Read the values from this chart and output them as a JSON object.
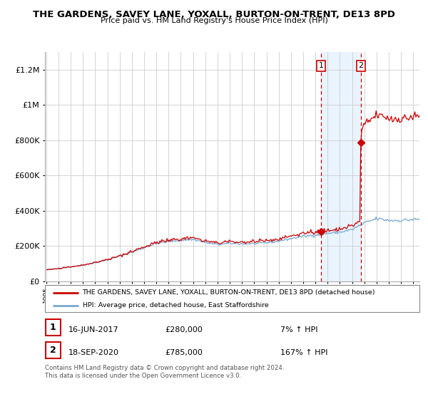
{
  "title1": "THE GARDENS, SAVEY LANE, YOXALL, BURTON-ON-TRENT, DE13 8PD",
  "title2": "Price paid vs. HM Land Registry's House Price Index (HPI)",
  "legend1": "THE GARDENS, SAVEY LANE, YOXALL, BURTON-ON-TRENT, DE13 8PD (detached house)",
  "legend2": "HPI: Average price, detached house, East Staffordshire",
  "point1_label": "1",
  "point1_date": "16-JUN-2017",
  "point1_price": "£280,000",
  "point1_pct": "7% ↑ HPI",
  "point2_label": "2",
  "point2_date": "18-SEP-2020",
  "point2_price": "£785,000",
  "point2_pct": "167% ↑ HPI",
  "footer": "Contains HM Land Registry data © Crown copyright and database right 2024.\nThis data is licensed under the Open Government Licence v3.0.",
  "red_color": "#cc0000",
  "blue_color": "#7aa8d2",
  "point1_x": 2017.46,
  "point1_y": 280000,
  "point2_x": 2020.72,
  "point2_y": 785000,
  "ylim": [
    0,
    1300000
  ],
  "xlim_start": 1994.9,
  "xlim_end": 2025.5,
  "background_color": "#ffffff",
  "grid_color": "#cccccc",
  "span_color": "#ddeeff"
}
